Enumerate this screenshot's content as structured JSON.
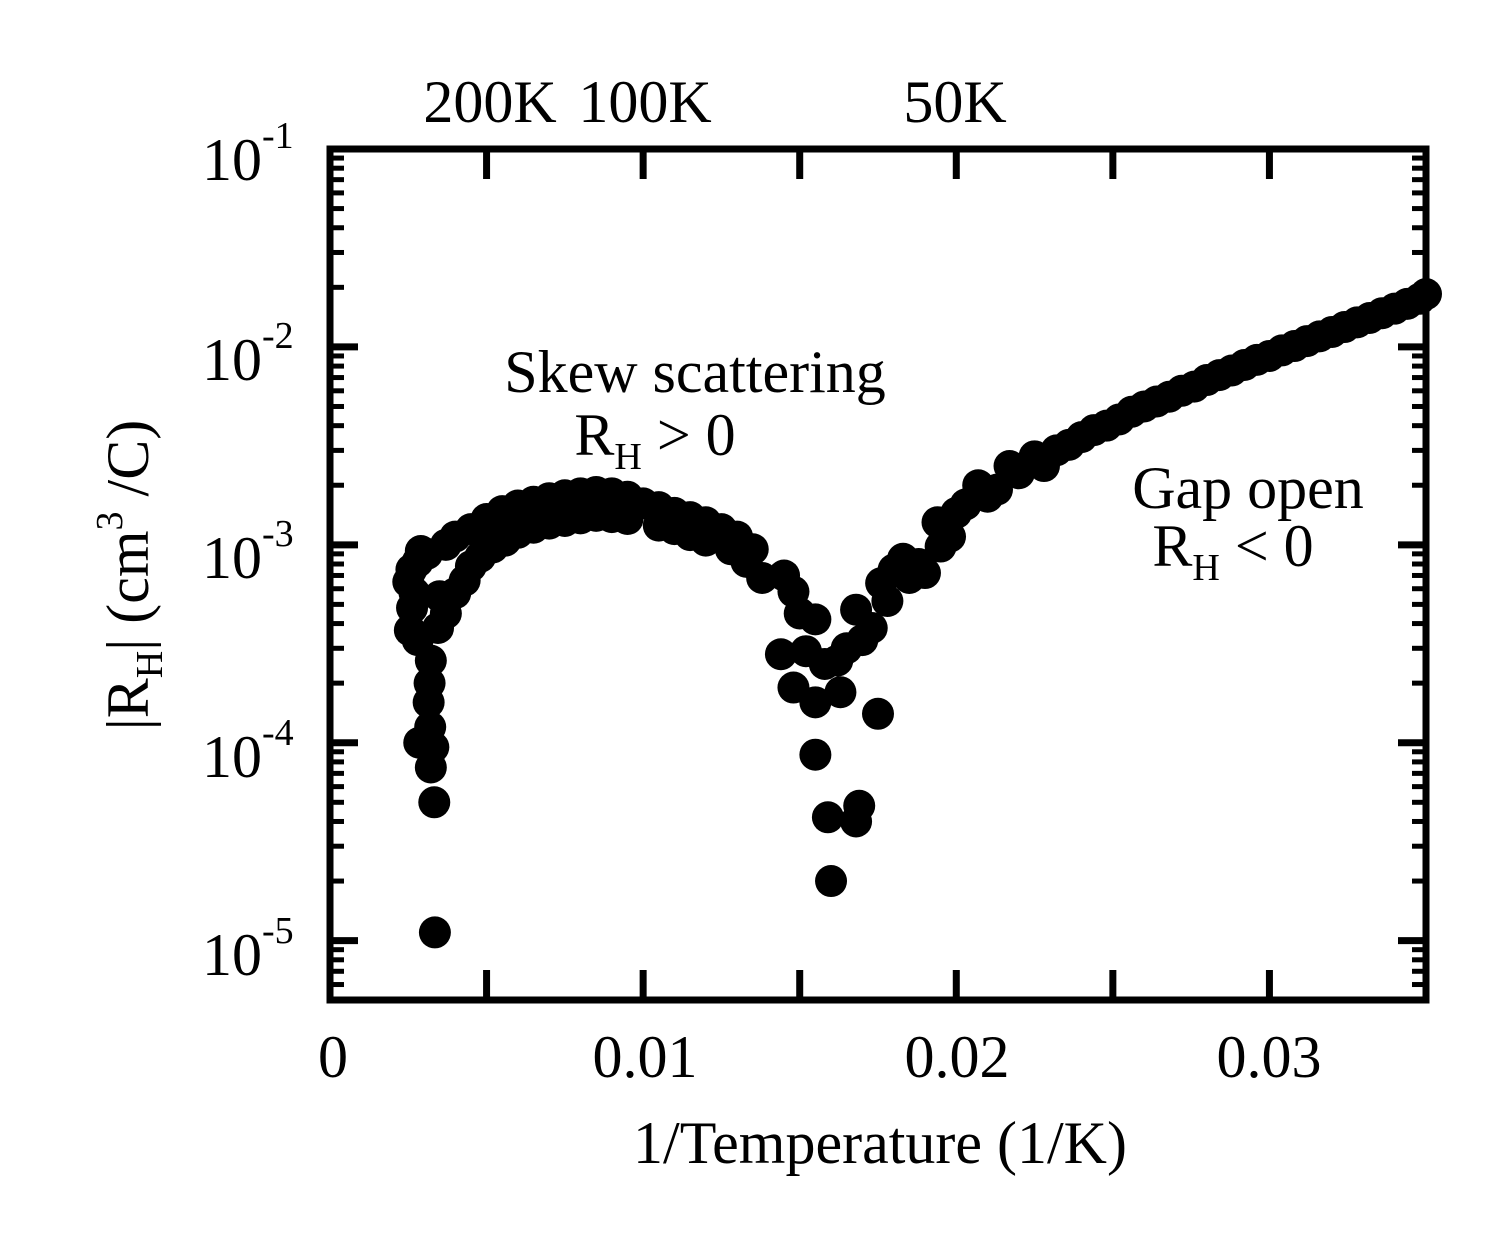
{
  "chart_data": {
    "type": "scatter",
    "xlabel": "1/Temperature (1/K)",
    "ylabel": {
      "main": "|R",
      "sub": "H",
      "rest": "| (cm",
      "sup": "3",
      "end": " /C)"
    },
    "xlim": [
      0,
      0.035
    ],
    "ylim_log10": [
      -5.3,
      -1
    ],
    "x_ticks": [
      {
        "value": 0,
        "label": "0"
      },
      {
        "value": 0.01,
        "label": "0.01"
      },
      {
        "value": 0.02,
        "label": "0.02"
      },
      {
        "value": 0.03,
        "label": "0.03"
      }
    ],
    "y_ticks": [
      {
        "exp": -1,
        "base": "10",
        "sup": "-1"
      },
      {
        "exp": -2,
        "base": "10",
        "sup": "-2"
      },
      {
        "exp": -3,
        "base": "10",
        "sup": "-3"
      },
      {
        "exp": -4,
        "base": "10",
        "sup": "-4"
      },
      {
        "exp": -5,
        "base": "10",
        "sup": "-5"
      }
    ],
    "top_axis_ticks": [
      {
        "value": 0.005,
        "label": "200K"
      },
      {
        "value": 0.01,
        "label": "100K"
      },
      {
        "value": 0.02,
        "label": "50K"
      }
    ],
    "top_axis_extra_ticks": [
      0.015,
      0.025,
      0.03
    ],
    "annotations": [
      {
        "id": "skew",
        "line1": "Skew scattering",
        "line2_main": "R",
        "line2_sub": "H",
        "line2_rest": " > 0"
      },
      {
        "id": "gap",
        "line1": "Gap open",
        "line2_main": "R",
        "line2_sub": "H",
        "line2_rest": " < 0"
      }
    ],
    "series": [
      {
        "name": "|R_H| data",
        "color": "#000000",
        "points": [
          [
            0.00335,
            1.1e-05
          ],
          [
            0.00333,
            5e-05
          ],
          [
            0.00322,
            7.5e-05
          ],
          [
            0.0033,
            9.5e-05
          ],
          [
            0.00285,
            0.0001
          ],
          [
            0.0032,
            0.00012
          ],
          [
            0.00315,
            0.00016
          ],
          [
            0.00318,
            0.0002
          ],
          [
            0.00322,
            0.00026
          ],
          [
            0.0028,
            0.00033
          ],
          [
            0.00255,
            0.00037
          ],
          [
            0.00262,
            0.00048
          ],
          [
            0.0027,
            0.00057
          ],
          [
            0.0025,
            0.00065
          ],
          [
            0.0028,
            0.00082
          ],
          [
            0.0029,
            0.00093
          ],
          [
            0.0031,
            0.0009
          ],
          [
            0.0026,
            0.00075
          ],
          [
            0.00345,
            0.00038
          ],
          [
            0.0037,
            0.00045
          ],
          [
            0.0035,
            0.00055
          ],
          [
            0.004,
            0.00057
          ],
          [
            0.0043,
            0.00066
          ],
          [
            0.0045,
            0.00078
          ],
          [
            0.0048,
            0.00087
          ],
          [
            0.0052,
            0.00097
          ],
          [
            0.0056,
            0.00105
          ],
          [
            0.006,
            0.00115
          ],
          [
            0.0065,
            0.00122
          ],
          [
            0.007,
            0.00128
          ],
          [
            0.0075,
            0.00132
          ],
          [
            0.008,
            0.00136
          ],
          [
            0.0085,
            0.0014
          ],
          [
            0.009,
            0.00138
          ],
          [
            0.0095,
            0.00135
          ],
          [
            0.0037,
            0.001
          ],
          [
            0.004,
            0.0011
          ],
          [
            0.0045,
            0.0012
          ],
          [
            0.005,
            0.00135
          ],
          [
            0.0055,
            0.00148
          ],
          [
            0.006,
            0.00158
          ],
          [
            0.0065,
            0.00165
          ],
          [
            0.007,
            0.00172
          ],
          [
            0.0075,
            0.00178
          ],
          [
            0.008,
            0.00182
          ],
          [
            0.0085,
            0.00185
          ],
          [
            0.009,
            0.00182
          ],
          [
            0.0095,
            0.00175
          ],
          [
            0.01,
            0.00162
          ],
          [
            0.0105,
            0.00155
          ],
          [
            0.011,
            0.00145
          ],
          [
            0.0115,
            0.00138
          ],
          [
            0.012,
            0.0013
          ],
          [
            0.0125,
            0.0012
          ],
          [
            0.013,
            0.0011
          ],
          [
            0.0135,
            0.00095
          ],
          [
            0.0105,
            0.00125
          ],
          [
            0.011,
            0.0012
          ],
          [
            0.0115,
            0.00112
          ],
          [
            0.012,
            0.00105
          ],
          [
            0.0128,
            0.00095
          ],
          [
            0.0133,
            0.00082
          ],
          [
            0.0138,
            0.00068
          ],
          [
            0.0145,
            0.0007
          ],
          [
            0.0148,
            0.00058
          ],
          [
            0.015,
            0.00045
          ],
          [
            0.0155,
            0.00042
          ],
          [
            0.0144,
            0.00028
          ],
          [
            0.0152,
            0.00029
          ],
          [
            0.0158,
            0.00025
          ],
          [
            0.0162,
            0.00026
          ],
          [
            0.0165,
            0.0003
          ],
          [
            0.0148,
            0.00019
          ],
          [
            0.0155,
            0.00016
          ],
          [
            0.0163,
            0.00018
          ],
          [
            0.0155,
            8.7e-05
          ],
          [
            0.0159,
            4.2e-05
          ],
          [
            0.0168,
            4e-05
          ],
          [
            0.0169,
            4.8e-05
          ],
          [
            0.016,
            2e-05
          ],
          [
            0.0175,
            0.00014
          ],
          [
            0.017,
            0.00033
          ],
          [
            0.0168,
            0.00047
          ],
          [
            0.0173,
            0.00038
          ],
          [
            0.0178,
            0.00052
          ],
          [
            0.0176,
            0.00064
          ],
          [
            0.018,
            0.00075
          ],
          [
            0.0183,
            0.00085
          ],
          [
            0.0188,
            0.0008
          ],
          [
            0.0185,
            0.00068
          ],
          [
            0.019,
            0.00072
          ],
          [
            0.0195,
            0.00098
          ],
          [
            0.0198,
            0.0011
          ],
          [
            0.0194,
            0.0013
          ],
          [
            0.02,
            0.00145
          ],
          [
            0.0203,
            0.0016
          ],
          [
            0.0207,
            0.002
          ],
          [
            0.021,
            0.00175
          ],
          [
            0.0213,
            0.0019
          ],
          [
            0.0217,
            0.0025
          ],
          [
            0.022,
            0.0023
          ],
          [
            0.0225,
            0.0028
          ],
          [
            0.0228,
            0.0025
          ],
          [
            0.0232,
            0.003
          ],
          [
            0.0236,
            0.0032
          ],
          [
            0.024,
            0.0035
          ],
          [
            0.0244,
            0.0038
          ],
          [
            0.0248,
            0.004
          ],
          [
            0.0252,
            0.0043
          ],
          [
            0.0256,
            0.0047
          ],
          [
            0.026,
            0.005
          ],
          [
            0.0264,
            0.0053
          ],
          [
            0.0268,
            0.0056
          ],
          [
            0.0272,
            0.006
          ],
          [
            0.0276,
            0.0063
          ],
          [
            0.028,
            0.0068
          ],
          [
            0.0284,
            0.0072
          ],
          [
            0.0288,
            0.0076
          ],
          [
            0.0292,
            0.0081
          ],
          [
            0.0296,
            0.0086
          ],
          [
            0.03,
            0.009
          ],
          [
            0.0304,
            0.0096
          ],
          [
            0.0308,
            0.0101
          ],
          [
            0.0312,
            0.0107
          ],
          [
            0.0316,
            0.0113
          ],
          [
            0.032,
            0.0119
          ],
          [
            0.0324,
            0.0126
          ],
          [
            0.0328,
            0.0133
          ],
          [
            0.0332,
            0.014
          ],
          [
            0.0336,
            0.0148
          ],
          [
            0.034,
            0.0156
          ],
          [
            0.0344,
            0.0165
          ],
          [
            0.0348,
            0.0175
          ],
          [
            0.035,
            0.0185
          ]
        ]
      }
    ]
  }
}
